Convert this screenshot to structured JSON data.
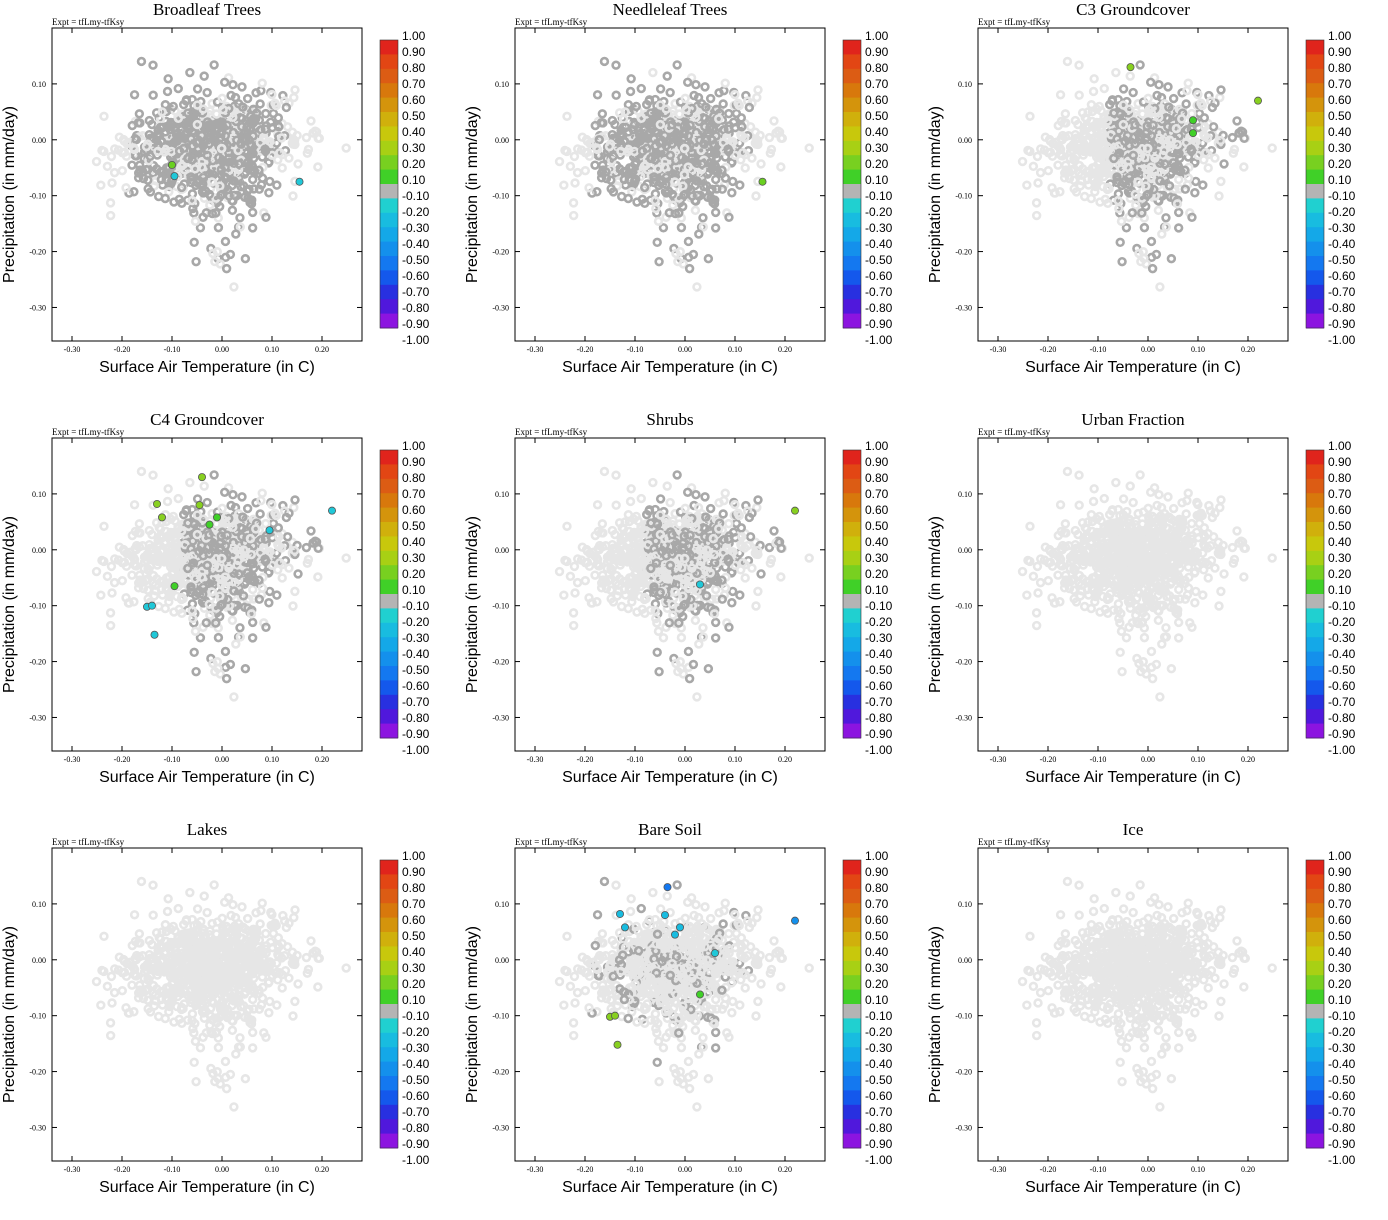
{
  "figure": {
    "expt_label": "Expt = tfLmy-tfKsy",
    "xlabel": "Surface Air Temperature (in C)",
    "ylabel": "Precipitation (in mm/day)",
    "xticks": [
      "-0.30",
      "-0.20",
      "-0.10",
      "0.00",
      "0.10",
      "0.20"
    ],
    "yticks": [
      "0.10",
      "0.00",
      "-0.10",
      "-0.20",
      "-0.30"
    ],
    "colorbar_labels": [
      "1.00",
      "0.90",
      "0.80",
      "0.70",
      "0.60",
      "0.50",
      "0.40",
      "0.30",
      "0.20",
      "0.10",
      "-0.10",
      "-0.20",
      "-0.30",
      "-0.40",
      "-0.50",
      "-0.60",
      "-0.70",
      "-0.80",
      "-0.90",
      "-1.00"
    ],
    "colorbar_colors": [
      "#e0241c",
      "#e24614",
      "#dc5c14",
      "#d8780c",
      "#d4940c",
      "#d0b00c",
      "#c8c80c",
      "#a8d014",
      "#78d020",
      "#40d028",
      "#b4b4b4",
      "#20d0d0",
      "#18bce0",
      "#14a8e8",
      "#1490ec",
      "#1478f0",
      "#1458ec",
      "#2830e0",
      "#5018dc",
      "#8c14e0"
    ],
    "background_point_color": "#e6e6e6",
    "insignificant_point_color": "#a8a8a8"
  },
  "chart_data": [
    {
      "type": "scatter",
      "title": "Broadleaf Trees",
      "xlim": [
        -0.34,
        0.28
      ],
      "ylim": [
        -0.36,
        0.2
      ],
      "gray_region": {
        "kind": "center",
        "fraction": 0.75
      },
      "highlights": [
        {
          "x": -0.1,
          "y": -0.045,
          "color": "#6ad020"
        },
        {
          "x": -0.095,
          "y": -0.065,
          "color": "#20c8d8"
        },
        {
          "x": 0.155,
          "y": -0.075,
          "color": "#20c8d8"
        }
      ]
    },
    {
      "type": "scatter",
      "title": "Needleleaf Trees",
      "xlim": [
        -0.34,
        0.28
      ],
      "ylim": [
        -0.36,
        0.2
      ],
      "gray_region": {
        "kind": "center",
        "fraction": 0.72
      },
      "highlights": [
        {
          "x": 0.155,
          "y": -0.075,
          "color": "#6ad020"
        }
      ]
    },
    {
      "type": "scatter",
      "title": "C3 Groundcover",
      "xlim": [
        -0.34,
        0.28
      ],
      "ylim": [
        -0.36,
        0.2
      ],
      "gray_region": {
        "kind": "right",
        "fraction": 0.35
      },
      "highlights": [
        {
          "x": -0.035,
          "y": 0.13,
          "color": "#88d020"
        },
        {
          "x": 0.09,
          "y": 0.035,
          "color": "#40d028"
        },
        {
          "x": 0.09,
          "y": 0.012,
          "color": "#40d028"
        },
        {
          "x": 0.22,
          "y": 0.07,
          "color": "#88d020"
        }
      ]
    },
    {
      "type": "scatter",
      "title": "C4 Groundcover",
      "xlim": [
        -0.34,
        0.28
      ],
      "ylim": [
        -0.36,
        0.2
      ],
      "gray_region": {
        "kind": "right",
        "fraction": 0.35
      },
      "highlights": [
        {
          "x": -0.13,
          "y": 0.082,
          "color": "#88d020"
        },
        {
          "x": -0.12,
          "y": 0.058,
          "color": "#88d020"
        },
        {
          "x": -0.04,
          "y": 0.13,
          "color": "#88d020"
        },
        {
          "x": -0.045,
          "y": 0.08,
          "color": "#88d020"
        },
        {
          "x": -0.025,
          "y": 0.045,
          "color": "#40d028"
        },
        {
          "x": -0.01,
          "y": 0.058,
          "color": "#40d028"
        },
        {
          "x": -0.095,
          "y": -0.065,
          "color": "#40d028"
        },
        {
          "x": -0.15,
          "y": -0.102,
          "color": "#20c8d8"
        },
        {
          "x": -0.14,
          "y": -0.1,
          "color": "#20c8d8"
        },
        {
          "x": -0.135,
          "y": -0.152,
          "color": "#20c8d8"
        },
        {
          "x": 0.095,
          "y": 0.035,
          "color": "#20c8d8"
        },
        {
          "x": 0.22,
          "y": 0.07,
          "color": "#20c8d8"
        }
      ]
    },
    {
      "type": "scatter",
      "title": "Shrubs",
      "xlim": [
        -0.34,
        0.28
      ],
      "ylim": [
        -0.36,
        0.2
      ],
      "gray_region": {
        "kind": "right",
        "fraction": 0.3
      },
      "highlights": [
        {
          "x": 0.22,
          "y": 0.07,
          "color": "#88d020"
        },
        {
          "x": 0.03,
          "y": -0.062,
          "color": "#20c8d8"
        }
      ]
    },
    {
      "type": "scatter",
      "title": "Urban Fraction",
      "xlim": [
        -0.34,
        0.28
      ],
      "ylim": [
        -0.36,
        0.2
      ],
      "gray_region": {
        "kind": "none",
        "fraction": 0
      },
      "highlights": []
    },
    {
      "type": "scatter",
      "title": "Lakes",
      "xlim": [
        -0.34,
        0.28
      ],
      "ylim": [
        -0.36,
        0.2
      ],
      "gray_region": {
        "kind": "none",
        "fraction": 0
      },
      "highlights": []
    },
    {
      "type": "scatter",
      "title": "Bare Soil",
      "xlim": [
        -0.34,
        0.28
      ],
      "ylim": [
        -0.36,
        0.2
      ],
      "gray_region": {
        "kind": "center",
        "fraction": 0.18
      },
      "highlights": [
        {
          "x": -0.035,
          "y": 0.13,
          "color": "#1478f0"
        },
        {
          "x": -0.13,
          "y": 0.082,
          "color": "#18bce0"
        },
        {
          "x": -0.12,
          "y": 0.058,
          "color": "#18bce0"
        },
        {
          "x": -0.04,
          "y": 0.08,
          "color": "#18bce0"
        },
        {
          "x": -0.01,
          "y": 0.058,
          "color": "#18bce0"
        },
        {
          "x": -0.02,
          "y": 0.045,
          "color": "#18bce0"
        },
        {
          "x": 0.06,
          "y": 0.012,
          "color": "#20c8d8"
        },
        {
          "x": 0.22,
          "y": 0.07,
          "color": "#1490ec"
        },
        {
          "x": 0.03,
          "y": -0.062,
          "color": "#40d028"
        },
        {
          "x": -0.15,
          "y": -0.102,
          "color": "#88d020"
        },
        {
          "x": -0.14,
          "y": -0.1,
          "color": "#88d020"
        },
        {
          "x": -0.135,
          "y": -0.152,
          "color": "#88d020"
        }
      ]
    },
    {
      "type": "scatter",
      "title": "Ice",
      "xlim": [
        -0.34,
        0.28
      ],
      "ylim": [
        -0.36,
        0.2
      ],
      "gray_region": {
        "kind": "none",
        "fraction": 0
      },
      "highlights": []
    }
  ]
}
